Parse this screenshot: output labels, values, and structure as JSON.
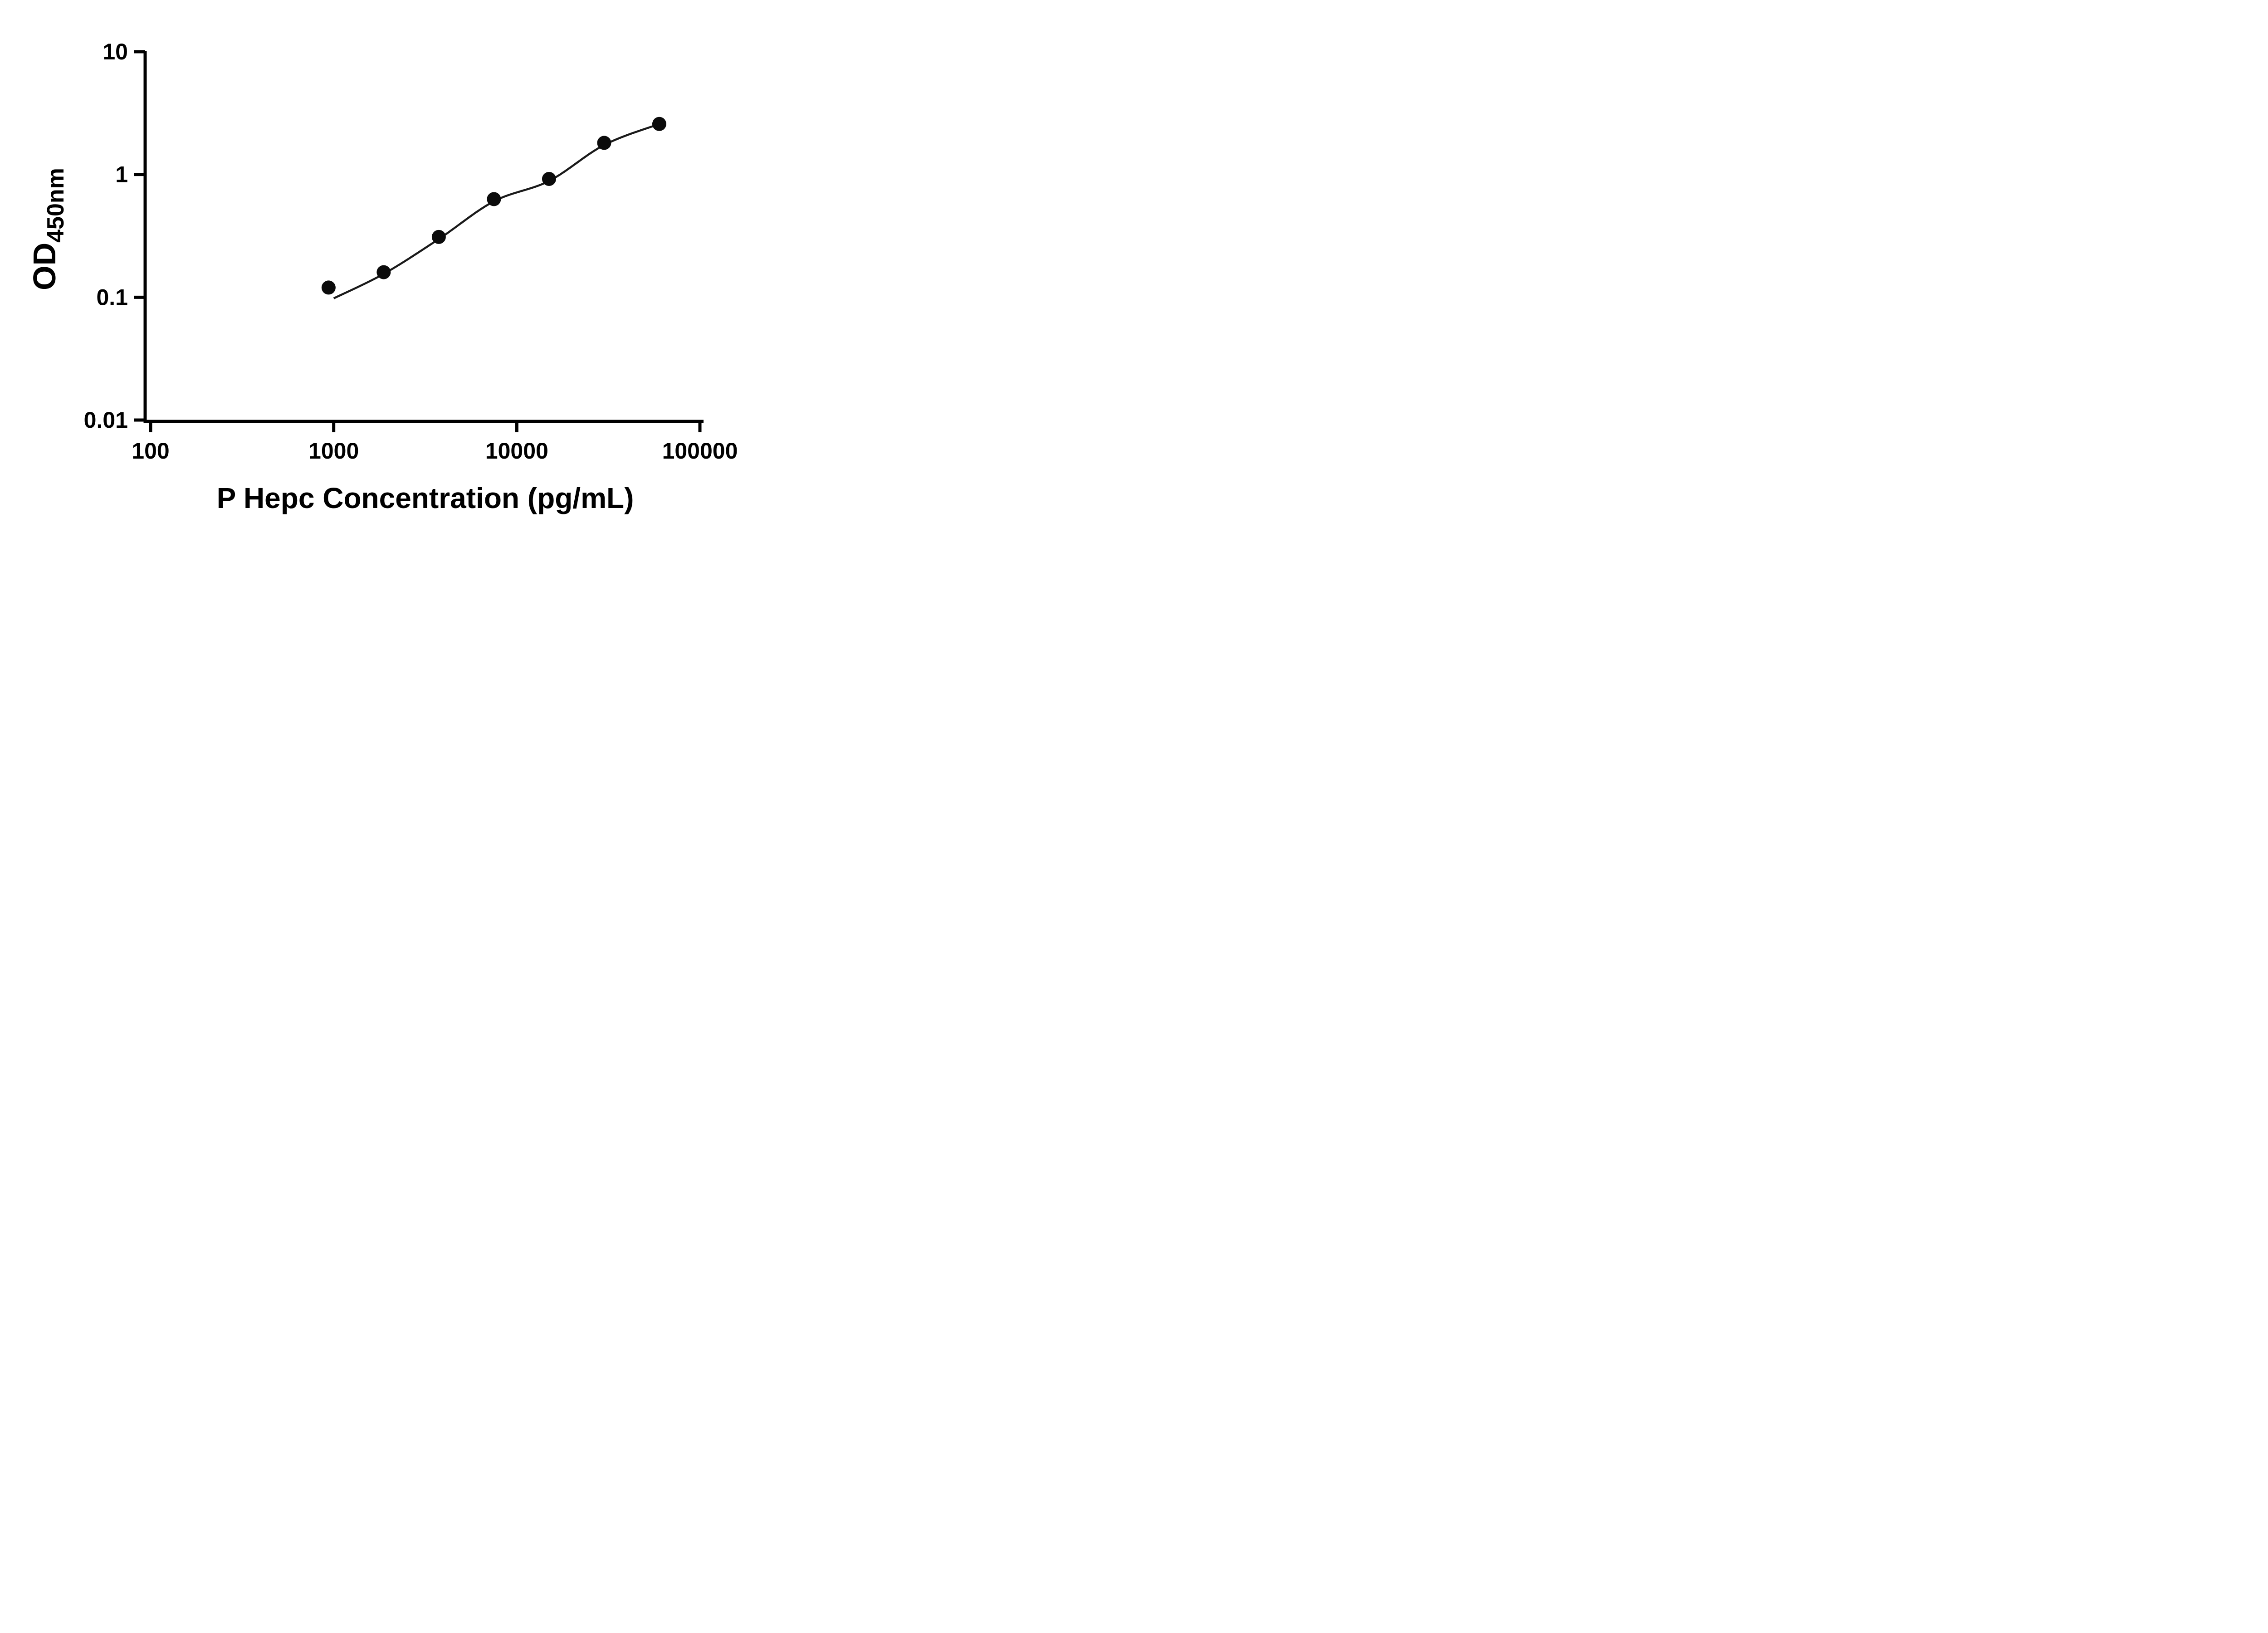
{
  "figure": {
    "background": "#ffffff"
  },
  "chart_data": {
    "type": "scatter",
    "title": "",
    "xlabel": "P Hepc Concentration (pg/mL)",
    "ylabel_main": "OD",
    "ylabel_sub": "450nm",
    "x_scale": "log10",
    "y_scale": "log10",
    "xlim": [
      100,
      100000
    ],
    "ylim": [
      0.01,
      10
    ],
    "grid": false,
    "legend": null,
    "axis_color": "#000000",
    "marker_color": "#0b0b0b",
    "line_color": "#1a1a1a",
    "x_ticks": [
      100,
      1000,
      10000,
      100000
    ],
    "x_tick_labels": [
      "100",
      "1000",
      "10000",
      "100000"
    ],
    "y_ticks": [
      0.01,
      0.1,
      1,
      10
    ],
    "y_tick_labels": [
      "0.01",
      "0.1",
      "1",
      "10"
    ],
    "points": [
      {
        "x": 937.5,
        "y": 0.12
      },
      {
        "x": 1875,
        "y": 0.16
      },
      {
        "x": 3750,
        "y": 0.31
      },
      {
        "x": 7500,
        "y": 0.63
      },
      {
        "x": 15000,
        "y": 0.92
      },
      {
        "x": 30000,
        "y": 1.81
      },
      {
        "x": 60000,
        "y": 2.58
      }
    ],
    "fit_curve": [
      [
        1000,
        0.098
      ],
      [
        1875,
        0.155
      ],
      [
        3750,
        0.298
      ],
      [
        7500,
        0.605
      ],
      [
        15000,
        0.885
      ],
      [
        30000,
        1.74
      ],
      [
        60000,
        2.58
      ]
    ]
  }
}
